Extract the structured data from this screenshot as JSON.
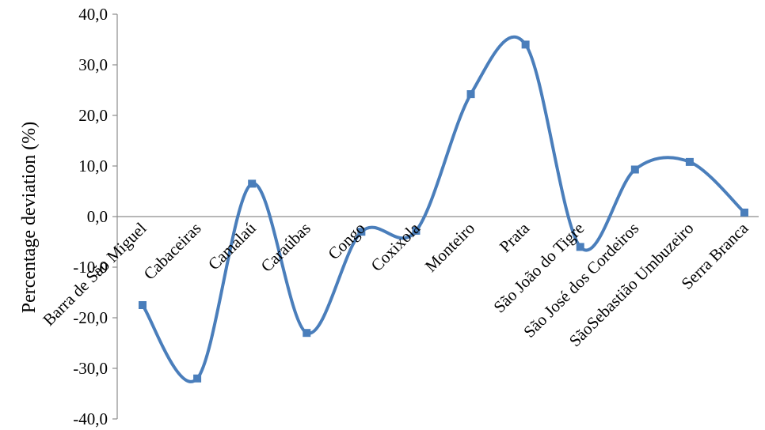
{
  "chart_data": {
    "type": "line",
    "smooth": true,
    "title": "",
    "xlabel": "",
    "ylabel": "Percentage deviation (%)",
    "ylim": [
      -40,
      40
    ],
    "yticks": [
      -40,
      -30,
      -20,
      -10,
      0,
      10,
      20,
      30,
      40
    ],
    "ytick_labels": [
      "-40,0",
      "-30,0",
      "-20,0",
      "-10,0",
      "0,0",
      "10,0",
      "20,0",
      "30,0",
      "40,0"
    ],
    "grid": false,
    "legend": "none",
    "color": "#4a7ebb",
    "categories": [
      "Barra de São Miguel",
      "Cabaceiras",
      "Camalaú",
      "Caraúbas",
      "Congo",
      "Coxixola",
      "Monteiro",
      "Prata",
      "São João do Tigre",
      "São José dos Cordeiros",
      "SãoSebastião Umbuzeiro",
      "Serra Branca"
    ],
    "series": [
      {
        "values": [
          -17.5,
          -32.0,
          6.5,
          -23.0,
          -3.0,
          -2.8,
          24.2,
          34.0,
          -6.0,
          9.3,
          10.8,
          0.8
        ]
      }
    ]
  }
}
